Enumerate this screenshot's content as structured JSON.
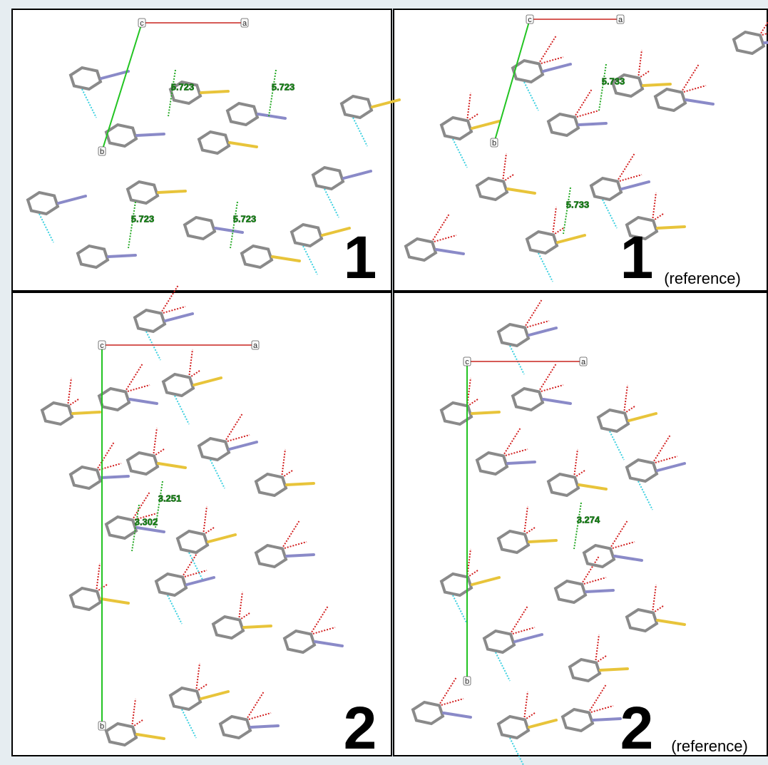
{
  "panels": [
    {
      "label": "1",
      "axes": [
        "c",
        "a",
        "b"
      ],
      "distances": [
        "5.723",
        "5.723",
        "5.723",
        "5.723"
      ]
    },
    {
      "label": "1",
      "note": "(reference)",
      "axes": [
        "c",
        "a",
        "b"
      ],
      "distances": [
        "5.733",
        "5.733"
      ]
    },
    {
      "label": "2",
      "axes": [
        "c",
        "a",
        "b"
      ],
      "distances": [
        "3.251",
        "3.302"
      ]
    },
    {
      "label": "2",
      "note": "(reference)",
      "axes": [
        "c",
        "a",
        "b"
      ],
      "distances": [
        "3.274"
      ]
    }
  ]
}
